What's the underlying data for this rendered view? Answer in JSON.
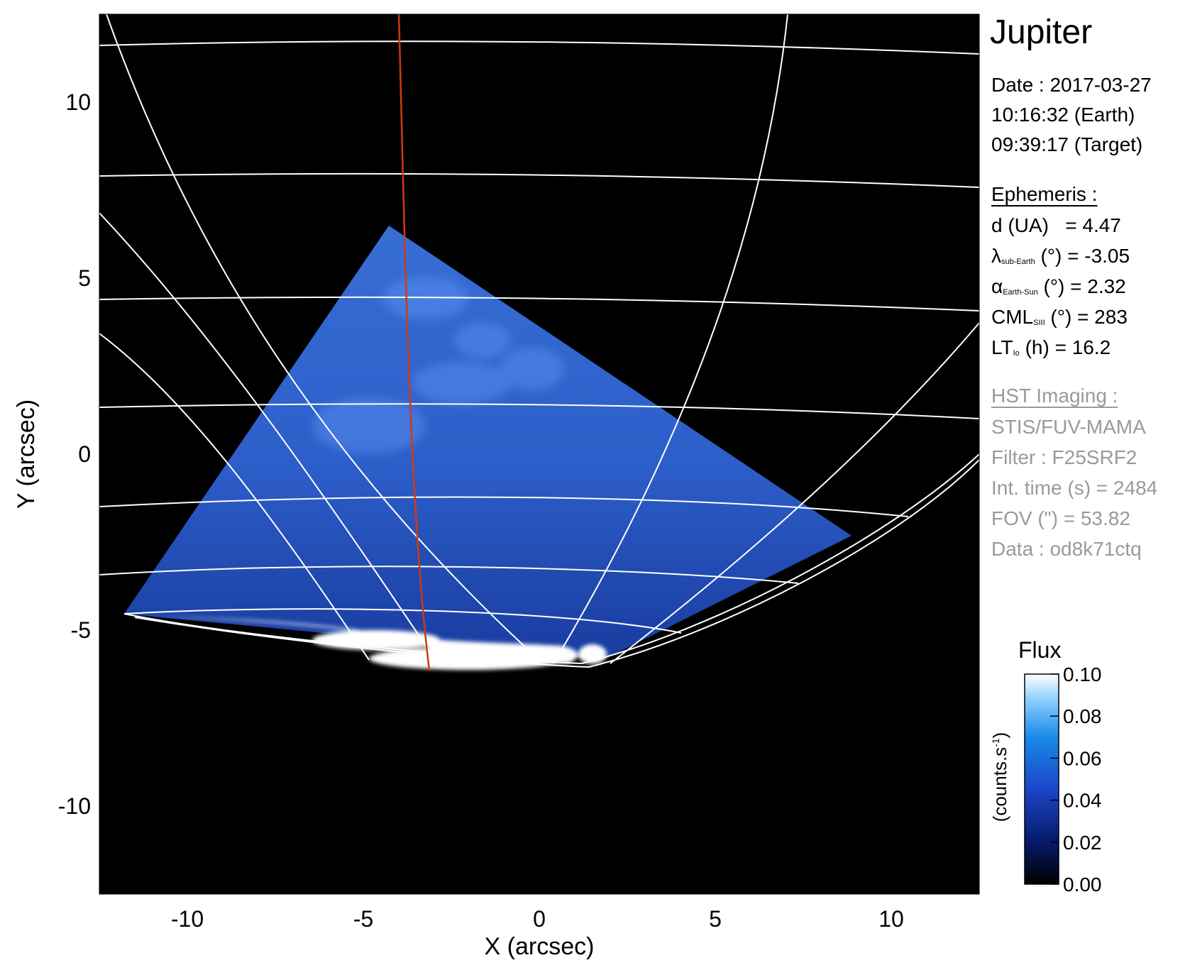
{
  "title": "Jupiter",
  "date": {
    "line1": "Date : 2017-03-27",
    "line2": "10:16:32 (Earth)",
    "line3": "09:39:17 (Target)"
  },
  "ephemeris": {
    "heading": "Ephemeris :",
    "d": {
      "label": "d (UA)",
      "value": "= 4.47"
    },
    "lambda": {
      "sym": "λ",
      "sub": "sub-Earth",
      "rest": "(°) = -3.05"
    },
    "alpha": {
      "sym": "α",
      "sub": "Earth-Sun",
      "rest": "(°) = 2.32"
    },
    "cml": {
      "sym": "CML",
      "sub": "SIII",
      "rest": "(°) = 283"
    },
    "lt": {
      "sym": "LT",
      "sub": "Io",
      "rest": "(h) = 16.2"
    }
  },
  "hst": {
    "heading": "HST Imaging :",
    "instrument": "STIS/FUV-MAMA",
    "filter": "Filter : F25SRF2",
    "int_time": "Int. time (s) = 2484",
    "fov": "FOV (\") = 53.82",
    "data": "Data : od8k71ctq"
  },
  "colorbar": {
    "title": "Flux",
    "label": "(counts.s",
    "label_sup": "-1",
    "label_end": ")",
    "ticks": [
      "0.00",
      "0.02",
      "0.04",
      "0.06",
      "0.08",
      "0.10"
    ],
    "range": [
      0.0,
      0.1
    ]
  },
  "axes": {
    "xlabel": "X (arcsec)",
    "ylabel": "Y (arcsec)",
    "x_range": [
      -12.5,
      12.5
    ],
    "y_range": [
      -12.5,
      12.5
    ],
    "x_ticks": [
      -10,
      -5,
      0,
      5,
      10
    ],
    "y_ticks": [
      -10,
      -5,
      0,
      5,
      10
    ]
  },
  "colors": {
    "background": "#000000",
    "grid": "#ffffff",
    "footprint_line": "#d03a10",
    "emission": "#2a5fd8"
  }
}
